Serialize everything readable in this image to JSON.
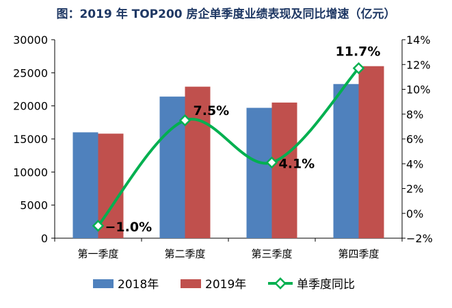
{
  "chart_data": {
    "type": "bar",
    "title": "图：2019 年 TOP200 房企单季度业绩表现及同比增速（亿元）",
    "categories": [
      "第一季度",
      "第二季度",
      "第三季度",
      "第四季度"
    ],
    "series": [
      {
        "name": "2018年",
        "type": "bar",
        "axis": "left",
        "color": "#4f81bd",
        "values": [
          16000,
          21400,
          19700,
          23300
        ]
      },
      {
        "name": "2019年",
        "type": "bar",
        "axis": "left",
        "color": "#c0504d",
        "values": [
          15800,
          22900,
          20500,
          26000
        ]
      },
      {
        "name": "单季度同比",
        "type": "line",
        "axis": "right",
        "color": "#00b050",
        "values": [
          -1.0,
          7.5,
          4.1,
          11.7
        ],
        "labels": [
          "−1.0%",
          "7.5%",
          "4.1%",
          "11.7%"
        ]
      }
    ],
    "y_left": {
      "range": [
        0,
        30000
      ],
      "ticks": [
        "0",
        "5000",
        "10000",
        "15000",
        "20000",
        "25000",
        "30000"
      ]
    },
    "y_right": {
      "range": [
        -2,
        14
      ],
      "ticks": [
        "−2%",
        "0%",
        "2%",
        "4%",
        "6%",
        "8%",
        "10%",
        "12%",
        "14%"
      ]
    },
    "grid": false,
    "legend": "bottom"
  }
}
